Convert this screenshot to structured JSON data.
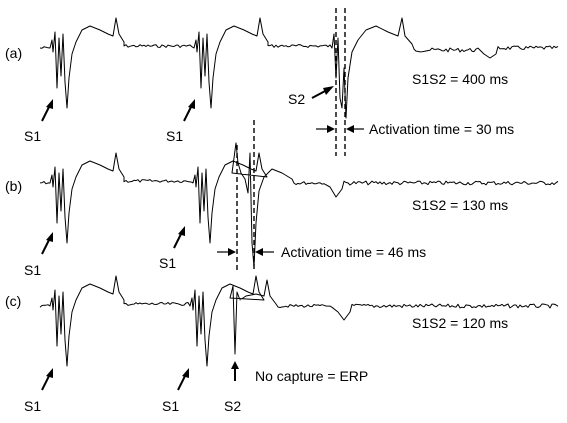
{
  "panels": [
    {
      "id": "a",
      "label": "(a)",
      "protocol": "S1S2 = 400 ms",
      "activation": "Activation time = 30 ms",
      "pacing_markers": [
        "S1",
        "S1",
        "S2"
      ]
    },
    {
      "id": "b",
      "label": "(b)",
      "protocol": "S1S2 = 130 ms",
      "activation": "Activation time = 46 ms",
      "pacing_markers": [
        "S1",
        "S1"
      ]
    },
    {
      "id": "c",
      "label": "(c)",
      "protocol": "S1S2 = 120 ms",
      "note": "No capture = ERP",
      "pacing_markers": [
        "S1",
        "S1",
        "S2"
      ]
    }
  ]
}
